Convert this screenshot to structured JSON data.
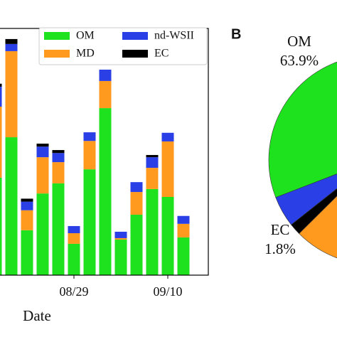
{
  "chart_data": [
    {
      "type": "bar",
      "stacked": true,
      "x_label": "Date",
      "categories": [
        null,
        null,
        null,
        null,
        null,
        "08/29",
        null,
        null,
        null,
        null,
        null,
        "09/10",
        null
      ],
      "series": [
        {
          "name": "OM",
          "color": "#1fe21f",
          "values": [
            39.5,
            55.9,
            18.2,
            33.1,
            37.2,
            12.7,
            42.9,
            67.7,
            14.4,
            24.5,
            34.9,
            31.7,
            15.3
          ]
        },
        {
          "name": "MD",
          "color": "#ff9a1f",
          "values": [
            28.8,
            34.9,
            8.1,
            14.7,
            8.6,
            4.3,
            11.5,
            11.0,
            0.6,
            9.2,
            8.6,
            22.5,
            5.5
          ]
        },
        {
          "name": "nd-WSII",
          "color": "#2a3fe6",
          "values": [
            8.1,
            2.9,
            3.5,
            4.3,
            3.7,
            2.9,
            3.5,
            4.6,
            2.6,
            4.0,
            4.3,
            3.5,
            3.2
          ]
        },
        {
          "name": "EC",
          "color": "#000000",
          "values": [
            1.2,
            2.0,
            1.2,
            1.2,
            1.2,
            0,
            0,
            0,
            0,
            0,
            0.9,
            0,
            0
          ]
        }
      ],
      "ylim": [
        0,
        100
      ],
      "legend": "upper right"
    },
    {
      "type": "pie",
      "title": "B",
      "categories": [
        "OM",
        null,
        "EC",
        null
      ],
      "values": [
        63.9,
        4.8,
        1.8,
        29.5
      ],
      "value_labels": [
        "63.9%",
        null,
        "1.8%",
        null
      ],
      "colors": [
        "#1fe21f",
        "#2a3fe6",
        "#000000",
        "#ff9a1f"
      ]
    }
  ]
}
